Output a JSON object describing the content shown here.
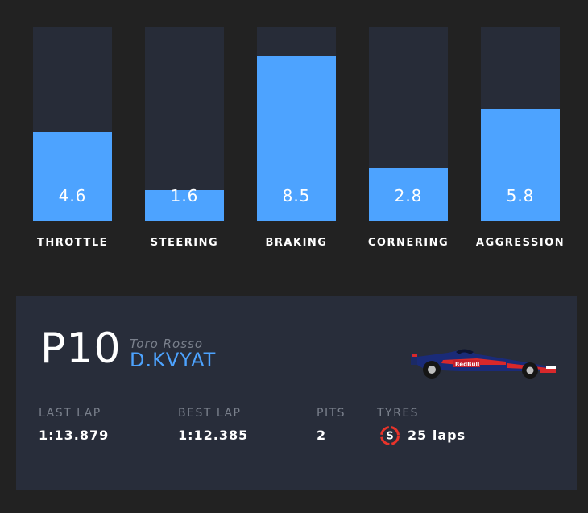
{
  "bars": [
    {
      "label": "THROTTLE",
      "value": "4.6",
      "fill_fraction": 0.46
    },
    {
      "label": "STEERING",
      "value": "1.6",
      "fill_fraction": 0.16
    },
    {
      "label": "BRAKING",
      "value": "8.5",
      "fill_fraction": 0.85
    },
    {
      "label": "CORNERING",
      "value": "2.8",
      "fill_fraction": 0.28
    },
    {
      "label": "AGGRESSION",
      "value": "5.8",
      "fill_fraction": 0.58
    }
  ],
  "driver_card": {
    "position": "P10",
    "team": "Toro Rosso",
    "driver": "D.KVYAT",
    "car_icon": "f1-car-icon",
    "stats": {
      "last_lap_label": "LAST LAP",
      "last_lap_value": "1:13.879",
      "best_lap_label": "BEST LAP",
      "best_lap_value": "1:12.385",
      "pits_label": "PITS",
      "pits_value": "2",
      "tyres_label": "TYRES",
      "tyre_compound": "S",
      "tyres_value": "25 laps"
    }
  },
  "colors": {
    "background": "#222222",
    "bar_track": "#272c38",
    "bar_fill": "#4da3ff",
    "panel": "#282d3a",
    "accent_blue": "#4da3ff",
    "muted_text": "#7a808c",
    "soft_tyre_red": "#e8332a"
  }
}
